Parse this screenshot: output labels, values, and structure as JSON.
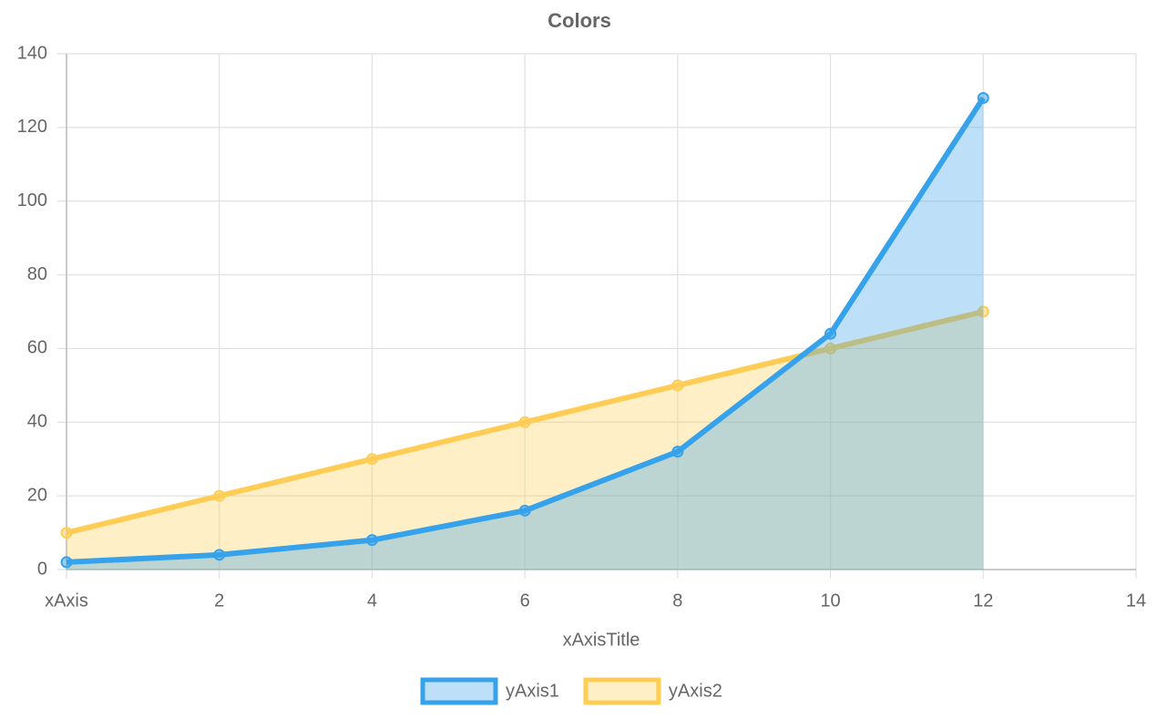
{
  "chart_data": {
    "type": "line",
    "title": "Colors",
    "x_label": "xAxisTitle",
    "x": [
      0,
      2,
      4,
      6,
      8,
      10,
      12
    ],
    "series": [
      {
        "name": "yAxis1",
        "color": "#36a2eb",
        "values": [
          2,
          4,
          8,
          16,
          32,
          64,
          128
        ]
      },
      {
        "name": "yAxis2",
        "color": "#ffcd56",
        "values": [
          10,
          20,
          30,
          40,
          50,
          60,
          70
        ]
      }
    ],
    "xlim": [
      0,
      14
    ],
    "xticks": [
      {
        "value": 0,
        "label": "xAxis"
      },
      2,
      4,
      6,
      8,
      10,
      12,
      14
    ],
    "ylim": [
      0,
      140
    ],
    "yticks": [
      0,
      20,
      40,
      60,
      80,
      100,
      120,
      140
    ],
    "grid": true,
    "fill": true,
    "legend": "bottom"
  }
}
